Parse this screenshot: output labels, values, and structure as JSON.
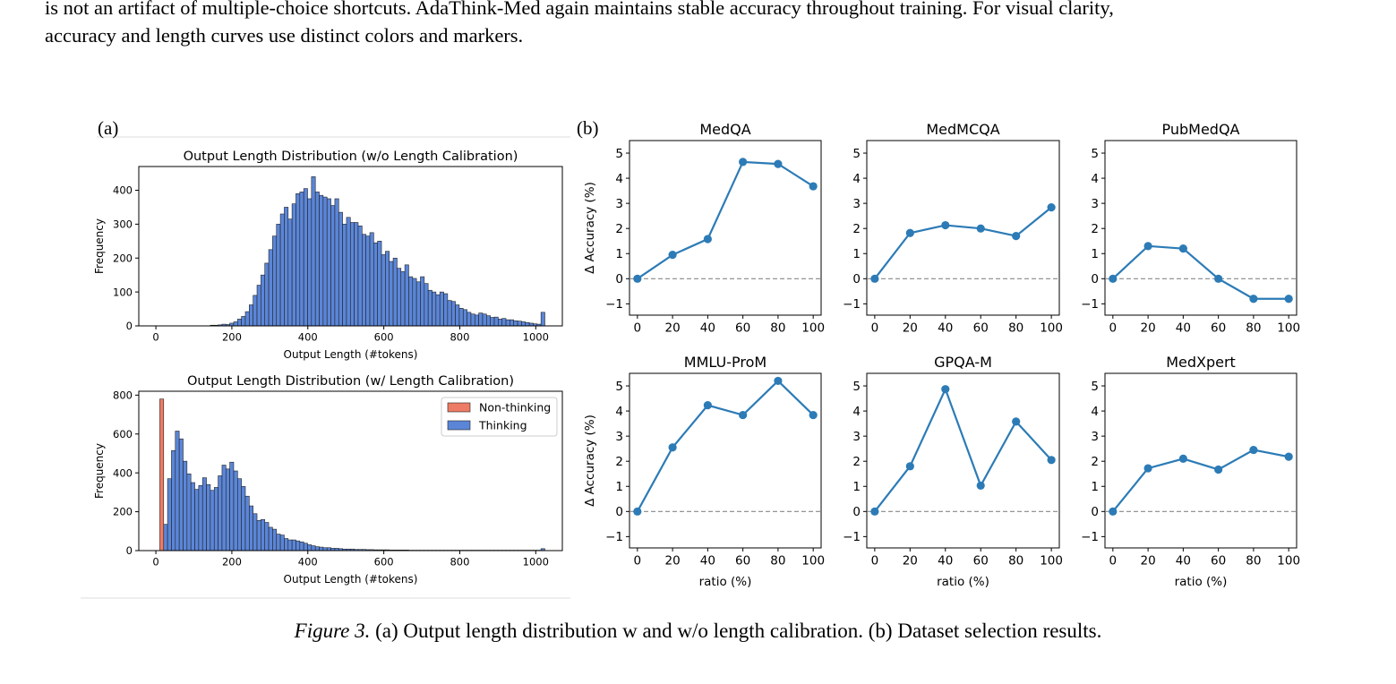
{
  "paper": {
    "line1": "is not an artifact of multiple-choice shortcuts. AdaThink-Med again maintains stable accuracy throughout training. For visual clarity,",
    "line2": "accuracy and length curves use distinct colors and markers.",
    "caption_number": "Figure 3.",
    "caption_text": "(a) Output length distribution w and w/o length calibration. (b) Dataset selection results.",
    "label_a": "(a)",
    "label_b": "(b)"
  },
  "colors": {
    "thinking": "#5b86d8",
    "non_thinking": "#ee7b65",
    "line": "#2c7bb6",
    "zero_line": "#888888"
  },
  "chart_data": [
    {
      "type": "bar",
      "title": "Output Length Distribution (w/o Length Calibration)",
      "xlabel": "Output Length (#tokens)",
      "ylabel": "Frequency",
      "xlim": [
        -45,
        1070
      ],
      "ylim": [
        0,
        470
      ],
      "xticks": [
        0,
        200,
        400,
        600,
        800,
        1000
      ],
      "yticks": [
        0,
        100,
        200,
        300,
        400
      ],
      "bin_start": 0,
      "bin_width": 10.24,
      "series": [
        {
          "name": "Thinking",
          "values": [
            0,
            0,
            0,
            0,
            0,
            0,
            0,
            0,
            0,
            0,
            0,
            0,
            0,
            0,
            2,
            2,
            3,
            5,
            4,
            8,
            12,
            20,
            28,
            42,
            62,
            90,
            120,
            150,
            185,
            225,
            265,
            300,
            330,
            350,
            315,
            360,
            390,
            395,
            405,
            375,
            440,
            395,
            385,
            380,
            375,
            355,
            375,
            335,
            300,
            320,
            305,
            305,
            295,
            270,
            265,
            275,
            245,
            250,
            210,
            220,
            190,
            200,
            170,
            160,
            180,
            145,
            140,
            130,
            145,
            125,
            105,
            100,
            92,
            100,
            95,
            75,
            72,
            62,
            52,
            48,
            40,
            35,
            32,
            38,
            35,
            30,
            25,
            26,
            20,
            22,
            18,
            18,
            15,
            14,
            12,
            10,
            8,
            6,
            5,
            40
          ]
        }
      ]
    },
    {
      "type": "bar",
      "title": "Output Length Distribution (w/ Length Calibration)",
      "xlabel": "Output Length (#tokens)",
      "ylabel": "Frequency",
      "xlim": [
        -45,
        1070
      ],
      "ylim": [
        0,
        820
      ],
      "xticks": [
        0,
        200,
        400,
        600,
        800,
        1000
      ],
      "yticks": [
        0,
        200,
        400,
        600,
        800
      ],
      "legend": "top-right",
      "bin_start": 0,
      "bin_width": 10.24,
      "series": [
        {
          "name": "Non-thinking",
          "values": [
            0,
            780
          ]
        },
        {
          "name": "Thinking",
          "values": [
            0,
            0,
            135,
            370,
            515,
            615,
            575,
            460,
            395,
            350,
            315,
            335,
            375,
            340,
            310,
            325,
            385,
            440,
            420,
            455,
            410,
            370,
            330,
            280,
            230,
            190,
            155,
            160,
            145,
            120,
            110,
            85,
            80,
            62,
            55,
            55,
            50,
            45,
            38,
            30,
            25,
            20,
            18,
            15,
            15,
            12,
            12,
            10,
            8,
            8,
            8,
            6,
            6,
            6,
            5,
            5,
            4,
            4,
            4,
            4,
            3,
            3,
            3,
            3,
            3,
            2,
            2,
            2,
            2,
            2,
            2,
            2,
            2,
            2,
            2,
            2,
            2,
            2,
            2,
            2,
            2,
            2,
            2,
            2,
            2,
            2,
            2,
            2,
            2,
            2,
            2,
            2,
            2,
            2,
            2,
            2,
            2,
            2,
            2,
            10
          ]
        }
      ]
    },
    {
      "type": "line",
      "title": "MedQA",
      "xlabel": "",
      "ylabel": "Δ Accuracy (%)",
      "x": [
        0,
        20,
        40,
        60,
        80,
        100
      ],
      "values": [
        0,
        0.95,
        1.58,
        4.65,
        4.57,
        3.68
      ],
      "xlim": [
        -4.5,
        104.5
      ],
      "ylim": [
        -1.45,
        5.5
      ],
      "xticks": [
        0,
        20,
        40,
        60,
        80,
        100
      ],
      "yticks": [
        -1,
        0,
        1,
        2,
        3,
        4,
        5
      ]
    },
    {
      "type": "line",
      "title": "MedMCQA",
      "xlabel": "",
      "ylabel": "",
      "x": [
        0,
        20,
        40,
        60,
        80,
        100
      ],
      "values": [
        0,
        1.82,
        2.13,
        2.0,
        1.7,
        2.84
      ],
      "xlim": [
        -4.5,
        104.5
      ],
      "ylim": [
        -1.45,
        5.5
      ],
      "xticks": [
        0,
        20,
        40,
        60,
        80,
        100
      ],
      "yticks": [
        -1,
        0,
        1,
        2,
        3,
        4,
        5
      ]
    },
    {
      "type": "line",
      "title": "PubMedQA",
      "xlabel": "",
      "ylabel": "",
      "x": [
        0,
        20,
        40,
        60,
        80,
        100
      ],
      "values": [
        0,
        1.3,
        1.2,
        0,
        -0.8,
        -0.8
      ],
      "xlim": [
        -4.5,
        104.5
      ],
      "ylim": [
        -1.45,
        5.5
      ],
      "xticks": [
        0,
        20,
        40,
        60,
        80,
        100
      ],
      "yticks": [
        -1,
        0,
        1,
        2,
        3,
        4,
        5
      ]
    },
    {
      "type": "line",
      "title": "MMLU-ProM",
      "xlabel": "ratio (%)",
      "ylabel": "Δ Accuracy (%)",
      "x": [
        0,
        20,
        40,
        60,
        80,
        100
      ],
      "values": [
        0,
        2.55,
        4.23,
        3.84,
        5.2,
        3.84
      ],
      "xlim": [
        -4.5,
        104.5
      ],
      "ylim": [
        -1.45,
        5.5
      ],
      "xticks": [
        0,
        20,
        40,
        60,
        80,
        100
      ],
      "yticks": [
        -1,
        0,
        1,
        2,
        3,
        4,
        5
      ]
    },
    {
      "type": "line",
      "title": "GPQA-M",
      "xlabel": "ratio (%)",
      "ylabel": "",
      "x": [
        0,
        20,
        40,
        60,
        80,
        100
      ],
      "values": [
        0,
        1.8,
        4.87,
        1.03,
        3.58,
        2.05
      ],
      "xlim": [
        -4.5,
        104.5
      ],
      "ylim": [
        -1.45,
        5.5
      ],
      "xticks": [
        0,
        20,
        40,
        60,
        80,
        100
      ],
      "yticks": [
        -1,
        0,
        1,
        2,
        3,
        4,
        5
      ]
    },
    {
      "type": "line",
      "title": "MedXpert",
      "xlabel": "ratio (%)",
      "ylabel": "",
      "x": [
        0,
        20,
        40,
        60,
        80,
        100
      ],
      "values": [
        0,
        1.72,
        2.1,
        1.67,
        2.45,
        2.18
      ],
      "xlim": [
        -4.5,
        104.5
      ],
      "ylim": [
        -1.45,
        5.5
      ],
      "xticks": [
        0,
        20,
        40,
        60,
        80,
        100
      ],
      "yticks": [
        -1,
        0,
        1,
        2,
        3,
        4,
        5
      ]
    }
  ]
}
